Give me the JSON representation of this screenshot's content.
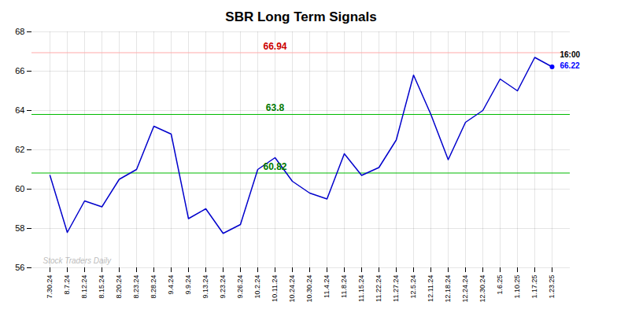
{
  "chart_data": {
    "type": "line",
    "title": "SBR Long Term Signals",
    "categories": [
      "7.30.24",
      "8.7.24",
      "8.12.24",
      "8.15.24",
      "8.20.24",
      "8.23.24",
      "8.28.24",
      "9.4.24",
      "9.9.24",
      "9.13.24",
      "9.23.24",
      "9.26.24",
      "10.2.24",
      "10.11.24",
      "10.24.24",
      "10.30.24",
      "11.4.24",
      "11.8.24",
      "11.15.24",
      "11.22.24",
      "11.27.24",
      "12.5.24",
      "12.11.24",
      "12.18.24",
      "12.24.24",
      "12.30.24",
      "1.6.25",
      "1.10.25",
      "1.17.25",
      "1.23.25"
    ],
    "values": [
      60.7,
      57.8,
      59.4,
      59.1,
      60.5,
      61.0,
      63.2,
      62.8,
      58.5,
      59.0,
      57.75,
      58.2,
      61.0,
      61.6,
      60.4,
      59.8,
      59.5,
      61.8,
      60.7,
      61.1,
      62.5,
      65.8,
      63.8,
      61.5,
      63.4,
      64.0,
      65.6,
      65.0,
      66.7,
      66.22
    ],
    "color": "#0000cc",
    "ylim": [
      56,
      68
    ],
    "yticks": [
      56,
      58,
      60,
      62,
      64,
      66,
      68
    ],
    "grid": true,
    "reference_lines": [
      {
        "value": 66.94,
        "label": "66.94",
        "color": "#ffaaaa",
        "label_color": "#cc0000"
      },
      {
        "value": 63.8,
        "label": "63.8",
        "color": "#00bb00",
        "label_color": "#007700"
      },
      {
        "value": 60.82,
        "label": "60.82",
        "color": "#00bb00",
        "label_color": "#007700"
      }
    ],
    "last_point": {
      "value": 66.22,
      "color": "#0000ff",
      "time_label": "16:00",
      "value_label": "66.22"
    },
    "watermark": {
      "text": "Stock Traders Daily",
      "color": "#aaaaaa"
    }
  }
}
